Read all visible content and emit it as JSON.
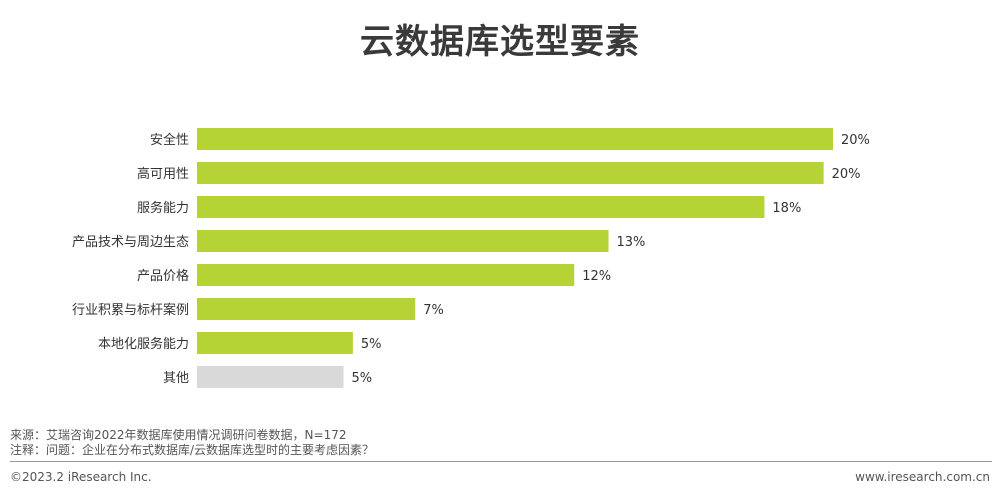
{
  "title": "云数据库选型要素",
  "chart_data": {
    "type": "bar",
    "orientation": "horizontal",
    "categories": [
      "安全性",
      "高可用性",
      "服务能力",
      "产品技术与周边生态",
      "产品价格",
      "行业积累与标杆案例",
      "本地化服务能力",
      "其他"
    ],
    "values": [
      20.4,
      20.1,
      18.2,
      13.2,
      12.1,
      7.0,
      5.0,
      4.7
    ],
    "value_labels": [
      "20%",
      "20%",
      "18%",
      "13%",
      "12%",
      "7%",
      "5%",
      "5%"
    ],
    "colors": [
      "#b5d334",
      "#b5d334",
      "#b5d334",
      "#b5d334",
      "#b5d334",
      "#b5d334",
      "#b5d334",
      "#d9d9d9"
    ],
    "xlim": [
      0,
      20.4
    ],
    "grid": false,
    "legend": "none"
  },
  "notes": {
    "source": "来源：艾瑞咨询2022年数据库使用情况调研问卷数据，N=172",
    "note": "注释：问题：企业在分布式数据库/云数据库选型时的主要考虑因素？"
  },
  "footer": {
    "copyright": "©2023.2 iResearch Inc.",
    "website": "www.iresearch.com.cn"
  }
}
